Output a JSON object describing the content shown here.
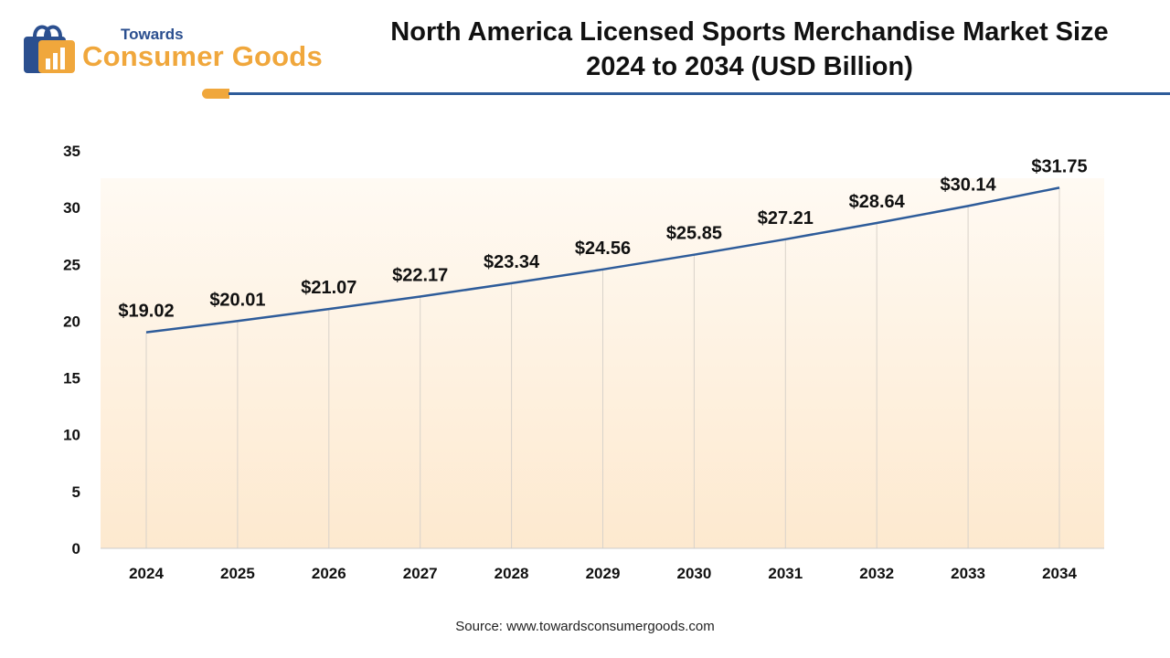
{
  "logo": {
    "small_text": "Towards",
    "big_text": "Consumer Goods"
  },
  "header": {
    "title_line1": "North America Licensed Sports Merchandise Market Size",
    "title_line2": "2024 to 2034 (USD Billion)"
  },
  "source": "Source: www.towardsconsumergoods.com",
  "colors": {
    "line": "#2e5c9a",
    "accent": "#f0a73c",
    "plot_bg_top": "#fffaf3",
    "plot_bg_bottom": "#fde9cf"
  },
  "chart_data": {
    "type": "line",
    "title": "North America Licensed Sports Merchandise Market Size 2024 to 2034 (USD Billion)",
    "xlabel": "",
    "ylabel": "",
    "categories": [
      "2024",
      "2025",
      "2026",
      "2027",
      "2028",
      "2029",
      "2030",
      "2031",
      "2032",
      "2033",
      "2034"
    ],
    "series": [
      {
        "values": [
          19.02,
          20.01,
          21.07,
          22.17,
          23.34,
          24.56,
          25.85,
          27.21,
          28.64,
          30.14,
          31.75
        ],
        "labels": [
          "$19.02",
          "$20.01",
          "$21.07",
          "$22.17",
          "$23.34",
          "$24.56",
          "$25.85",
          "$27.21",
          "$28.64",
          "$30.14",
          "$31.75"
        ]
      }
    ],
    "ylim": [
      0,
      35
    ],
    "yticks": [
      0,
      5,
      10,
      15,
      20,
      25,
      30,
      35
    ],
    "grid": "vertical",
    "legend": "none"
  }
}
